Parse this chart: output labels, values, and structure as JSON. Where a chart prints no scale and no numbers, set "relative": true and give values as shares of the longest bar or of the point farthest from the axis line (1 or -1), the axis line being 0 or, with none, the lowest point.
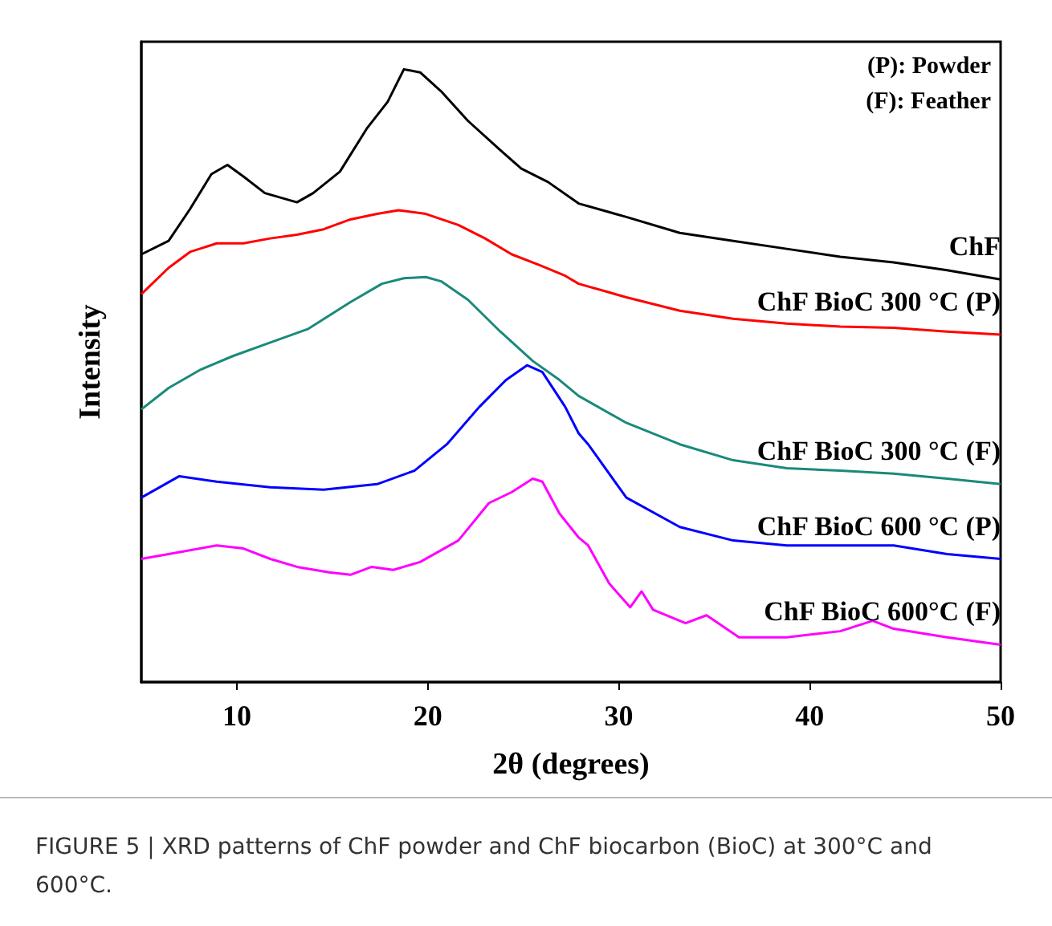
{
  "chart_data": {
    "type": "line",
    "relative": true,
    "xlabel": "2θ (degrees)",
    "ylabel": "Intensity",
    "xlim": [
      5,
      50
    ],
    "xticks": [
      10,
      20,
      30,
      40,
      50
    ],
    "tick_labels": "x",
    "grid": false,
    "legend": false,
    "marker": "none",
    "line_style": "solid",
    "annotations": [
      "(P): Powder",
      "(F): Feather",
      "FIGURE 5 | XRD patterns of ChF powder and ChF biocarbon (BioC) at 300°C and 600°C."
    ],
    "series": [
      {
        "name": "ChF",
        "color": "#000000",
        "x": [
          5.0,
          6.43,
          7.55,
          8.67,
          9.51,
          10.35,
          11.47,
          13.15,
          14.0,
          15.4,
          16.8,
          17.9,
          18.75,
          19.6,
          20.7,
          22.1,
          23.8,
          24.9,
          26.3,
          27.9,
          30.4,
          33.2,
          36.0,
          38.8,
          41.6,
          44.4,
          47.2,
          50.0
        ],
        "values": [
          0.698,
          0.72,
          0.772,
          0.829,
          0.844,
          0.825,
          0.798,
          0.783,
          0.798,
          0.833,
          0.903,
          0.947,
          1.0,
          0.995,
          0.964,
          0.916,
          0.868,
          0.838,
          0.816,
          0.781,
          0.759,
          0.733,
          0.72,
          0.707,
          0.694,
          0.685,
          0.672,
          0.657
        ]
      },
      {
        "name": "ChF BioC 300 °C (P)",
        "color": "#ff0000",
        "x": [
          5.0,
          6.43,
          7.55,
          8.95,
          10.35,
          11.75,
          13.15,
          14.55,
          15.95,
          17.35,
          18.47,
          19.9,
          21.6,
          23.0,
          24.4,
          25.8,
          27.2,
          27.9,
          30.4,
          33.2,
          36.0,
          38.8,
          41.6,
          44.4,
          47.2,
          50.0
        ],
        "values": [
          0.633,
          0.676,
          0.702,
          0.716,
          0.716,
          0.724,
          0.73,
          0.739,
          0.755,
          0.764,
          0.77,
          0.764,
          0.746,
          0.724,
          0.698,
          0.681,
          0.663,
          0.65,
          0.628,
          0.606,
          0.593,
          0.585,
          0.58,
          0.578,
          0.572,
          0.567
        ]
      },
      {
        "name": "ChF BioC 300 °C (F)",
        "color": "#1a8a7a",
        "x": [
          5.0,
          6.43,
          8.11,
          9.79,
          11.75,
          13.71,
          15.95,
          17.6,
          18.75,
          19.9,
          20.7,
          22.1,
          23.8,
          25.5,
          26.9,
          27.9,
          30.4,
          33.2,
          36.0,
          38.8,
          41.6,
          44.4,
          47.2,
          50.0
        ],
        "values": [
          0.445,
          0.48,
          0.51,
          0.532,
          0.554,
          0.576,
          0.62,
          0.65,
          0.659,
          0.661,
          0.654,
          0.624,
          0.572,
          0.524,
          0.493,
          0.467,
          0.423,
          0.388,
          0.362,
          0.349,
          0.345,
          0.34,
          0.332,
          0.323
        ]
      },
      {
        "name": "ChF BioC 600 °C (P)",
        "color": "#0000ff",
        "x": [
          5.0,
          6.99,
          8.95,
          11.75,
          14.55,
          17.35,
          19.3,
          21.0,
          22.7,
          24.1,
          25.2,
          26.0,
          27.2,
          27.9,
          28.4,
          30.4,
          33.2,
          36.0,
          38.8,
          41.6,
          44.4,
          47.2,
          50.0
        ],
        "values": [
          0.301,
          0.336,
          0.327,
          0.318,
          0.314,
          0.323,
          0.345,
          0.388,
          0.449,
          0.493,
          0.517,
          0.506,
          0.449,
          0.406,
          0.388,
          0.301,
          0.253,
          0.231,
          0.223,
          0.223,
          0.223,
          0.209,
          0.201
        ]
      },
      {
        "name": "ChF BioC 600°C (F)",
        "color": "#ff00ff",
        "x": [
          5.0,
          6.43,
          8.95,
          10.35,
          11.75,
          13.15,
          14.83,
          15.95,
          17.07,
          18.19,
          19.6,
          21.6,
          23.2,
          24.4,
          25.5,
          26.0,
          26.9,
          27.9,
          28.4,
          29.5,
          30.6,
          31.2,
          31.8,
          33.5,
          34.6,
          36.3,
          38.8,
          41.6,
          43.3,
          44.4,
          47.2,
          50.0
        ],
        "values": [
          0.201,
          0.209,
          0.223,
          0.218,
          0.201,
          0.188,
          0.179,
          0.175,
          0.188,
          0.183,
          0.196,
          0.231,
          0.292,
          0.31,
          0.332,
          0.327,
          0.275,
          0.236,
          0.223,
          0.161,
          0.122,
          0.148,
          0.118,
          0.096,
          0.109,
          0.073,
          0.073,
          0.083,
          0.1,
          0.087,
          0.073,
          0.061
        ]
      }
    ]
  }
}
